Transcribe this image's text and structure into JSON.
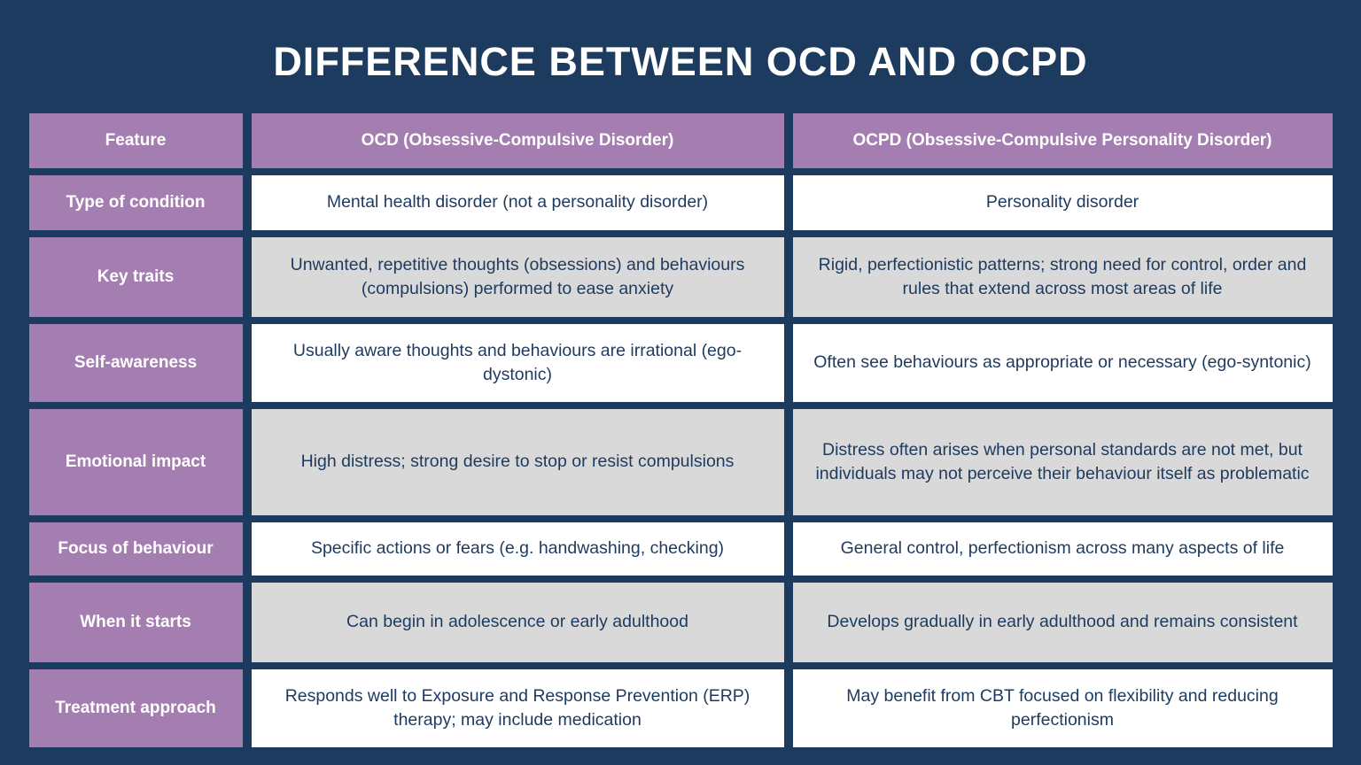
{
  "page": {
    "title": "DIFFERENCE BETWEEN OCD AND OCPD"
  },
  "colors": {
    "background": "#1d3a5f",
    "header_purple": "#a57eb1",
    "cell_white": "#ffffff",
    "cell_gray": "#d9d9d9",
    "text_dark": "#1d3a5f",
    "text_white": "#ffffff"
  },
  "table": {
    "columns": [
      {
        "label": "Feature"
      },
      {
        "label": "OCD (Obsessive-Compulsive Disorder)"
      },
      {
        "label": "OCPD (Obsessive-Compulsive Personality Disorder)"
      }
    ],
    "rows": [
      {
        "feature": "Type of condition",
        "ocd": "Mental health disorder (not a personality disorder)",
        "ocpd": "Personality disorder"
      },
      {
        "feature": "Key traits",
        "ocd": "Unwanted, repetitive thoughts (obsessions) and behaviours (compulsions) performed to ease anxiety",
        "ocpd": "Rigid, perfectionistic patterns; strong need for control, order and rules that extend across most areas of life"
      },
      {
        "feature": "Self-awareness",
        "ocd": "Usually aware thoughts and behaviours are irrational (ego-dystonic)",
        "ocpd": "Often see behaviours as appropriate or necessary (ego-syntonic)"
      },
      {
        "feature": "Emotional impact",
        "ocd": "High distress; strong desire to stop or resist compulsions",
        "ocpd": "Distress often arises when personal standards are not met, but individuals may not perceive their behaviour itself as problematic"
      },
      {
        "feature": "Focus of behaviour",
        "ocd": "Specific actions or fears (e.g. handwashing, checking)",
        "ocpd": "General control, perfectionism across many aspects of life"
      },
      {
        "feature": "When it starts",
        "ocd": "Can begin in adolescence or early adulthood",
        "ocpd": "Develops gradually in early adulthood and remains consistent"
      },
      {
        "feature": "Treatment approach",
        "ocd": "Responds well to Exposure and Response Prevention (ERP) therapy; may include medication",
        "ocpd": "May benefit from CBT focused on flexibility and reducing perfectionism"
      }
    ]
  }
}
